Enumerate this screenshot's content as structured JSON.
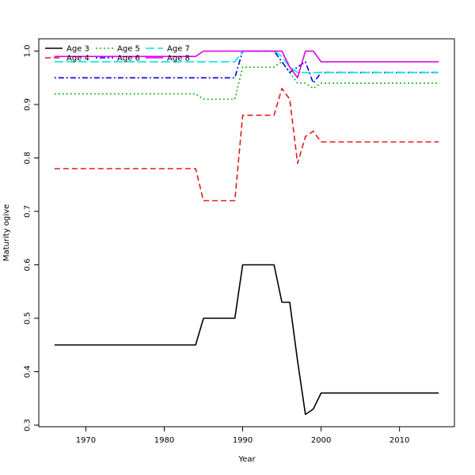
{
  "chart_data": {
    "type": "line",
    "title": "",
    "xlabel": "Year",
    "ylabel": "Maturity ogive",
    "xlim": [
      1964,
      2017
    ],
    "ylim": [
      0.297,
      1.023
    ],
    "x_ticks": [
      1970,
      1980,
      1990,
      2000,
      2010
    ],
    "y_ticks": [
      0.3,
      0.4,
      0.5,
      0.6,
      0.7,
      0.8,
      0.9,
      1.0
    ],
    "y_tick_labels": [
      "0.3",
      "0.4",
      "0.5",
      "0.6",
      "0.7",
      "0.8",
      "0.9",
      "1.0"
    ],
    "grid": false,
    "legend_position": "top-left",
    "series": [
      {
        "name": "Age 3",
        "color": "#000000",
        "dash": "solid",
        "points": [
          [
            1966,
            0.45
          ],
          [
            1984,
            0.45
          ],
          [
            1985,
            0.5
          ],
          [
            1989,
            0.5
          ],
          [
            1990,
            0.6
          ],
          [
            1994,
            0.6
          ],
          [
            1995,
            0.53
          ],
          [
            1996,
            0.53
          ],
          [
            1997,
            0.42
          ],
          [
            1998,
            0.32
          ],
          [
            1999,
            0.33
          ],
          [
            2000,
            0.36
          ],
          [
            2015,
            0.36
          ]
        ]
      },
      {
        "name": "Age 4",
        "color": "#e31a1c",
        "dash": "dashed",
        "points": [
          [
            1966,
            0.78
          ],
          [
            1984,
            0.78
          ],
          [
            1985,
            0.72
          ],
          [
            1989,
            0.72
          ],
          [
            1990,
            0.88
          ],
          [
            1994,
            0.88
          ],
          [
            1995,
            0.93
          ],
          [
            1996,
            0.91
          ],
          [
            1997,
            0.79
          ],
          [
            1998,
            0.84
          ],
          [
            1999,
            0.85
          ],
          [
            2000,
            0.83
          ],
          [
            2015,
            0.83
          ]
        ]
      },
      {
        "name": "Age 5",
        "color": "#11b811",
        "dash": "dotted",
        "points": [
          [
            1966,
            0.92
          ],
          [
            1984,
            0.92
          ],
          [
            1985,
            0.91
          ],
          [
            1989,
            0.91
          ],
          [
            1990,
            0.97
          ],
          [
            1994,
            0.97
          ],
          [
            1995,
            0.98
          ],
          [
            1996,
            0.96
          ],
          [
            1997,
            0.94
          ],
          [
            1998,
            0.94
          ],
          [
            1999,
            0.93
          ],
          [
            2000,
            0.94
          ],
          [
            2015,
            0.94
          ]
        ]
      },
      {
        "name": "Age 6",
        "color": "#0000e6",
        "dash": "dotdash",
        "points": [
          [
            1966,
            0.95
          ],
          [
            1989,
            0.95
          ],
          [
            1990,
            1.0
          ],
          [
            1994,
            1.0
          ],
          [
            1995,
            0.98
          ],
          [
            1996,
            0.96
          ],
          [
            1997,
            0.97
          ],
          [
            1998,
            0.98
          ],
          [
            1999,
            0.94
          ],
          [
            2000,
            0.96
          ],
          [
            2015,
            0.96
          ]
        ]
      },
      {
        "name": "Age 7",
        "color": "#00e5e5",
        "dash": "longdash",
        "points": [
          [
            1966,
            0.98
          ],
          [
            1989,
            0.98
          ],
          [
            1990,
            1.0
          ],
          [
            1994,
            1.0
          ],
          [
            1995,
            0.99
          ],
          [
            1996,
            0.97
          ],
          [
            1997,
            0.96
          ],
          [
            1998,
            0.96
          ],
          [
            2000,
            0.96
          ],
          [
            2015,
            0.96
          ]
        ]
      },
      {
        "name": "Age 8",
        "color": "#e600e6",
        "dash": "solid",
        "points": [
          [
            1966,
            0.99
          ],
          [
            1984,
            0.99
          ],
          [
            1985,
            1.0
          ],
          [
            1995,
            1.0
          ],
          [
            1996,
            0.97
          ],
          [
            1997,
            0.95
          ],
          [
            1998,
            1.0
          ],
          [
            1999,
            1.0
          ],
          [
            2000,
            0.98
          ],
          [
            2015,
            0.98
          ]
        ]
      }
    ]
  }
}
